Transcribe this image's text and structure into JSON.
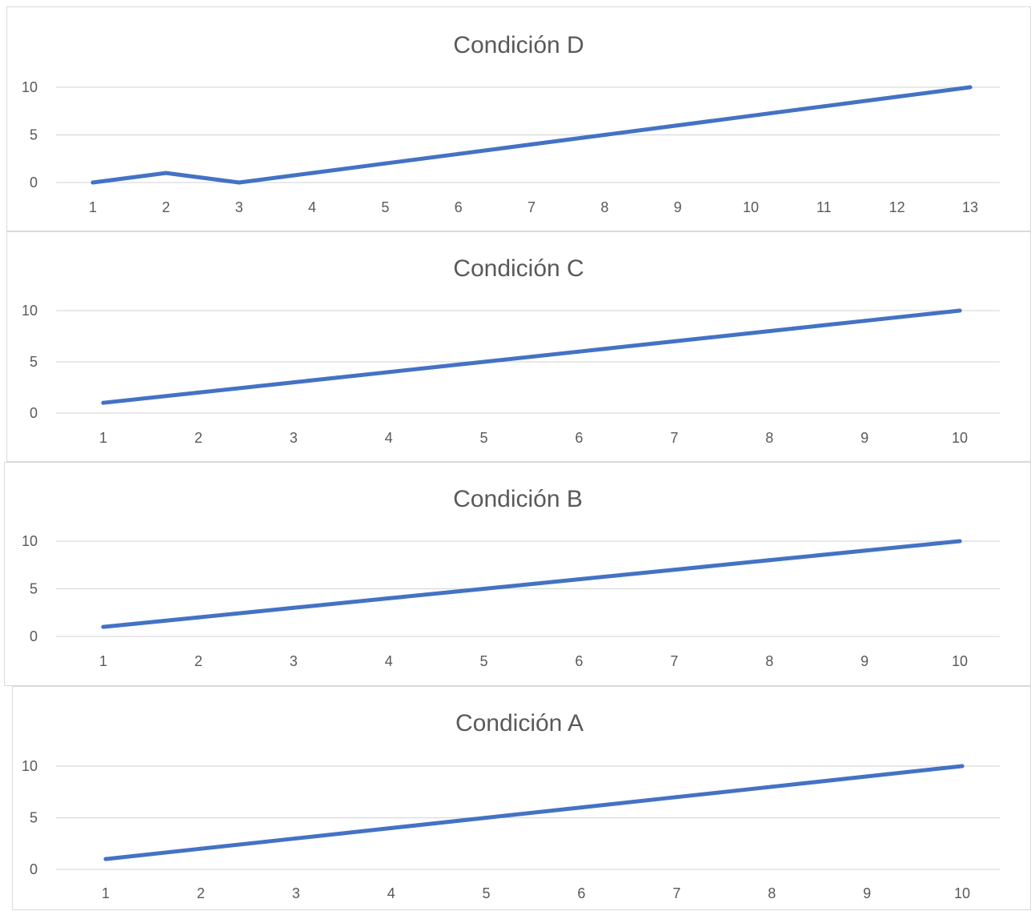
{
  "chart_data": [
    {
      "type": "line",
      "title": "Condición D",
      "xlabel": "",
      "ylabel": "",
      "categories": [
        "1",
        "2",
        "3",
        "4",
        "5",
        "6",
        "7",
        "8",
        "9",
        "10",
        "11",
        "12",
        "13"
      ],
      "series": [
        {
          "values": [
            0,
            1,
            0,
            1,
            2,
            3,
            4,
            5,
            6,
            7,
            8,
            9,
            10
          ]
        }
      ],
      "ylim": [
        0,
        10
      ],
      "yticks": [
        "0",
        "5",
        "10"
      ],
      "grid": true,
      "legend": "none",
      "color": "#4472c4"
    },
    {
      "type": "line",
      "title": "Condición C",
      "xlabel": "",
      "ylabel": "",
      "categories": [
        "1",
        "2",
        "3",
        "4",
        "5",
        "6",
        "7",
        "8",
        "9",
        "10"
      ],
      "series": [
        {
          "values": [
            1,
            2,
            3,
            4,
            5,
            6,
            7,
            8,
            9,
            10
          ]
        }
      ],
      "ylim": [
        0,
        10
      ],
      "yticks": [
        "0",
        "5",
        "10"
      ],
      "grid": true,
      "legend": "none",
      "color": "#4472c4"
    },
    {
      "type": "line",
      "title": "Condición B",
      "xlabel": "",
      "ylabel": "",
      "categories": [
        "1",
        "2",
        "3",
        "4",
        "5",
        "6",
        "7",
        "8",
        "9",
        "10"
      ],
      "series": [
        {
          "values": [
            1,
            2,
            3,
            4,
            5,
            6,
            7,
            8,
            9,
            10
          ]
        }
      ],
      "ylim": [
        0,
        10
      ],
      "yticks": [
        "0",
        "5",
        "10"
      ],
      "grid": true,
      "legend": "none",
      "color": "#4472c4"
    },
    {
      "type": "line",
      "title": "Condición A",
      "xlabel": "",
      "ylabel": "",
      "categories": [
        "1",
        "2",
        "3",
        "4",
        "5",
        "6",
        "7",
        "8",
        "9",
        "10"
      ],
      "series": [
        {
          "values": [
            1,
            2,
            3,
            4,
            5,
            6,
            7,
            8,
            9,
            10
          ]
        }
      ],
      "ylim": [
        0,
        10
      ],
      "yticks": [
        "0",
        "5",
        "10"
      ],
      "grid": true,
      "legend": "none",
      "color": "#4472c4"
    }
  ]
}
